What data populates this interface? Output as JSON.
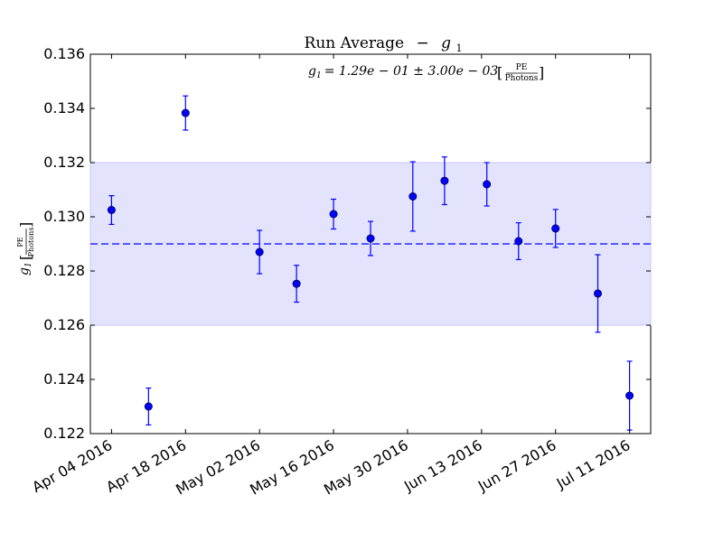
{
  "chart_data": {
    "type": "scatter",
    "title": "Run Average",
    "title_symbol": "g",
    "title_subscript": "1",
    "title_separator": "−",
    "ylabel_symbol": "g",
    "ylabel_subscript": "1",
    "ylabel_numerator": "PE",
    "ylabel_denominator": "Photons",
    "annotation": {
      "symbol": "g",
      "subscript": "1",
      "text": "= 1.29e − 01 ± 3.00e − 03",
      "unit_numerator": "PE",
      "unit_denominator": "Photons"
    },
    "xlim": [
      "2016-03-31",
      "2016-07-15"
    ],
    "ylim": [
      0.122,
      0.136
    ],
    "x_ticks": [
      "2016-04-04",
      "2016-04-18",
      "2016-05-02",
      "2016-05-16",
      "2016-05-30",
      "2016-06-13",
      "2016-06-27",
      "2016-07-11"
    ],
    "x_tick_labels": [
      "Apr 04 2016",
      "Apr 18 2016",
      "May 02 2016",
      "May 16 2016",
      "May 30 2016",
      "Jun 13 2016",
      "Jun 27 2016",
      "Jul 11 2016"
    ],
    "y_ticks": [
      0.122,
      0.124,
      0.126,
      0.128,
      0.13,
      0.132,
      0.134,
      0.136
    ],
    "y_tick_labels": [
      "0.122",
      "0.124",
      "0.126",
      "0.128",
      "0.130",
      "0.132",
      "0.134",
      "0.136"
    ],
    "mean": 0.129,
    "band": [
      0.126,
      0.132
    ],
    "series": [
      {
        "points": [
          {
            "x": "2016-04-04",
            "y": 0.13025,
            "err": 0.00053
          },
          {
            "x": "2016-04-11",
            "y": 0.123,
            "err": 0.00068
          },
          {
            "x": "2016-04-18",
            "y": 0.13383,
            "err": 0.00063
          },
          {
            "x": "2016-05-02",
            "y": 0.1287,
            "err": 0.0008
          },
          {
            "x": "2016-05-09",
            "y": 0.12753,
            "err": 0.00068
          },
          {
            "x": "2016-05-16",
            "y": 0.1301,
            "err": 0.00055
          },
          {
            "x": "2016-05-23",
            "y": 0.1292,
            "err": 0.00063
          },
          {
            "x": "2016-05-31",
            "y": 0.13075,
            "err": 0.00128
          },
          {
            "x": "2016-06-06",
            "y": 0.13133,
            "err": 0.00088
          },
          {
            "x": "2016-06-14",
            "y": 0.1312,
            "err": 0.0008
          },
          {
            "x": "2016-06-20",
            "y": 0.1291,
            "err": 0.00068
          },
          {
            "x": "2016-06-27",
            "y": 0.12957,
            "err": 0.0007
          },
          {
            "x": "2016-07-05",
            "y": 0.12717,
            "err": 0.00143
          },
          {
            "x": "2016-07-11",
            "y": 0.1234,
            "err": 0.00127
          }
        ]
      }
    ],
    "grid": false,
    "colors": {
      "marker": "#0000ff",
      "errorbar": "#0000ff",
      "mean_line": "#0000ff",
      "band": "#e3e3fd"
    }
  }
}
